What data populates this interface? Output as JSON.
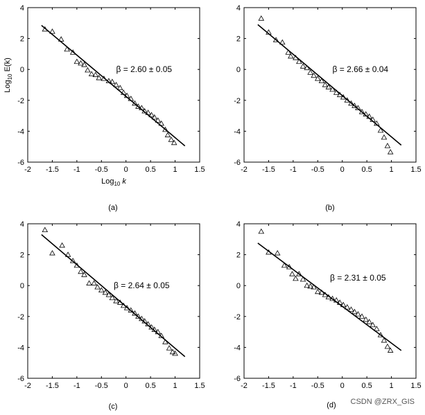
{
  "chart_data": [
    {
      "type": "scatter",
      "panel_label": "(a)",
      "xlabel_base": "Log",
      "xlabel_sub": "10",
      "xlabel_var": " k",
      "ylabel_base": "Log",
      "ylabel_sub": "10",
      "ylabel_var": " E(k)",
      "xlim": [
        -2,
        1.5
      ],
      "ylim": [
        -6,
        4
      ],
      "xticks": [
        -2,
        -1.5,
        -1,
        -0.5,
        0,
        0.5,
        1,
        1.5
      ],
      "yticks": [
        -6,
        -4,
        -2,
        0,
        2,
        4
      ],
      "annotation": "β = 2.60 ± 0.05",
      "annotation_pos": [
        -0.2,
        0.0
      ],
      "fit_line": {
        "x": [
          -1.72,
          1.2
        ],
        "y": [
          2.85,
          -4.95
        ]
      },
      "points": {
        "x": [
          -1.65,
          -1.5,
          -1.32,
          -1.2,
          -1.08,
          -1.0,
          -0.92,
          -0.85,
          -0.78,
          -0.7,
          -0.62,
          -0.55,
          -0.45,
          -0.35,
          -0.28,
          -0.2,
          -0.12,
          -0.05,
          0.02,
          0.1,
          0.18,
          0.25,
          0.32,
          0.38,
          0.45,
          0.52,
          0.58,
          0.65,
          0.72,
          0.8,
          0.85,
          0.92,
          0.98
        ],
        "y": [
          2.6,
          2.45,
          1.95,
          1.3,
          1.1,
          0.5,
          0.4,
          0.3,
          -0.05,
          -0.3,
          -0.35,
          -0.55,
          -0.6,
          -0.75,
          -0.8,
          -1.0,
          -1.2,
          -1.5,
          -1.7,
          -1.9,
          -2.2,
          -2.4,
          -2.5,
          -2.7,
          -2.8,
          -2.95,
          -3.1,
          -3.3,
          -3.5,
          -3.9,
          -4.25,
          -4.55,
          -4.75
        ]
      }
    },
    {
      "type": "scatter",
      "panel_label": "(b)",
      "xlim": [
        -2,
        1.5
      ],
      "ylim": [
        -6,
        4
      ],
      "xticks": [
        -2,
        -1.5,
        -1,
        -0.5,
        0,
        0.5,
        1,
        1.5
      ],
      "yticks": [
        -6,
        -4,
        -2,
        0,
        2,
        4
      ],
      "annotation": "β = 2.66 ± 0.04",
      "annotation_pos": [
        -0.2,
        0.0
      ],
      "fit_line": {
        "x": [
          -1.72,
          1.2
        ],
        "y": [
          2.9,
          -4.9
        ]
      },
      "points": {
        "x": [
          -1.65,
          -1.5,
          -1.35,
          -1.22,
          -1.1,
          -1.05,
          -0.95,
          -0.88,
          -0.8,
          -0.72,
          -0.65,
          -0.58,
          -0.5,
          -0.42,
          -0.35,
          -0.28,
          -0.2,
          -0.12,
          -0.05,
          0.02,
          0.1,
          0.18,
          0.25,
          0.32,
          0.4,
          0.48,
          0.55,
          0.62,
          0.7,
          0.78,
          0.85,
          0.92,
          0.98
        ],
        "y": [
          3.3,
          2.4,
          1.9,
          1.75,
          1.1,
          0.85,
          0.75,
          0.5,
          0.2,
          0.1,
          -0.2,
          -0.4,
          -0.6,
          -0.75,
          -1.0,
          -1.15,
          -1.3,
          -1.5,
          -1.65,
          -1.8,
          -2.0,
          -2.2,
          -2.35,
          -2.5,
          -2.75,
          -2.9,
          -3.05,
          -3.25,
          -3.5,
          -3.95,
          -4.4,
          -4.95,
          -5.35
        ]
      }
    },
    {
      "type": "scatter",
      "panel_label": "(c)",
      "xlim": [
        -2,
        1.5
      ],
      "ylim": [
        -6,
        4
      ],
      "xticks": [
        -2,
        -1.5,
        -1,
        -0.5,
        0,
        0.5,
        1,
        1.5
      ],
      "yticks": [
        -6,
        -4,
        -2,
        0,
        2,
        4
      ],
      "annotation": "β = 2.64 ± 0.05",
      "annotation_pos": [
        -0.25,
        0.0
      ],
      "fit_line": {
        "x": [
          -1.72,
          1.2
        ],
        "y": [
          3.3,
          -4.6
        ]
      },
      "points": {
        "x": [
          -1.65,
          -1.5,
          -1.3,
          -1.18,
          -1.08,
          -1.0,
          -0.92,
          -0.85,
          -0.75,
          -0.65,
          -0.58,
          -0.5,
          -0.42,
          -0.35,
          -0.28,
          -0.2,
          -0.12,
          -0.05,
          0.02,
          0.1,
          0.18,
          0.25,
          0.32,
          0.38,
          0.45,
          0.52,
          0.58,
          0.65,
          0.72,
          0.8,
          0.88,
          0.95,
          1.0
        ],
        "y": [
          3.6,
          2.1,
          2.6,
          2.0,
          1.6,
          1.3,
          0.9,
          0.7,
          0.15,
          0.15,
          -0.1,
          -0.3,
          -0.45,
          -0.6,
          -0.8,
          -1.0,
          -1.1,
          -1.3,
          -1.45,
          -1.6,
          -1.8,
          -2.0,
          -2.15,
          -2.3,
          -2.5,
          -2.7,
          -2.85,
          -3.0,
          -3.25,
          -3.65,
          -4.05,
          -4.3,
          -4.4
        ]
      }
    },
    {
      "type": "scatter",
      "panel_label": "(d)",
      "xlim": [
        -2,
        1.5
      ],
      "ylim": [
        -6,
        4
      ],
      "xticks": [
        -2,
        -1.5,
        -1,
        -0.5,
        0,
        0.5,
        1,
        1.5
      ],
      "yticks": [
        -6,
        -4,
        -2,
        0,
        2,
        4
      ],
      "annotation": "β = 2.31 ± 0.05",
      "annotation_pos": [
        -0.25,
        0.5
      ],
      "fit_line": {
        "x": [
          -1.72,
          1.2
        ],
        "y": [
          2.75,
          -4.2
        ]
      },
      "points": {
        "x": [
          -1.65,
          -1.5,
          -1.32,
          -1.18,
          -1.08,
          -1.02,
          -0.95,
          -0.88,
          -0.8,
          -0.72,
          -0.65,
          -0.58,
          -0.5,
          -0.42,
          -0.35,
          -0.28,
          -0.2,
          -0.12,
          -0.05,
          0.02,
          0.1,
          0.18,
          0.25,
          0.32,
          0.4,
          0.48,
          0.55,
          0.62,
          0.7,
          0.78,
          0.85,
          0.92,
          0.98
        ],
        "y": [
          3.5,
          2.15,
          2.1,
          1.3,
          1.2,
          0.75,
          0.45,
          0.75,
          0.4,
          0.0,
          -0.05,
          -0.1,
          -0.4,
          -0.45,
          -0.6,
          -0.75,
          -0.85,
          -0.95,
          -1.1,
          -1.25,
          -1.4,
          -1.55,
          -1.7,
          -1.85,
          -2.0,
          -2.2,
          -2.35,
          -2.55,
          -2.8,
          -3.2,
          -3.55,
          -3.95,
          -4.2
        ]
      }
    }
  ],
  "watermark": "CSDN @ZRX_GIS"
}
